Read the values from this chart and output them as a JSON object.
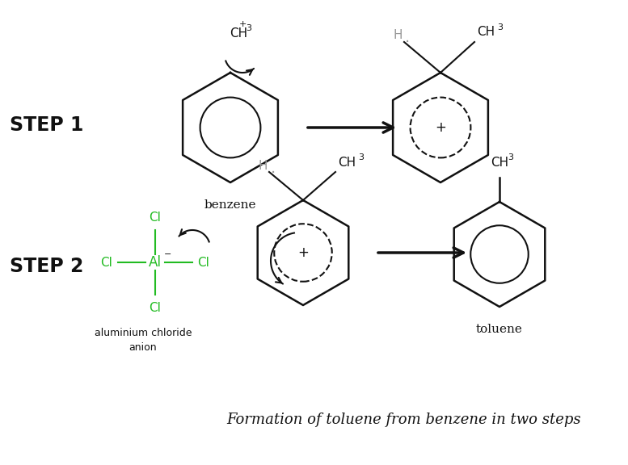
{
  "bg_color": "#ffffff",
  "title": "Formation of toluene from benzene in two steps",
  "title_fontsize": 13,
  "green_color": "#22bb22",
  "black_color": "#111111",
  "gray_color": "#999999",
  "step1_label": "STEP 1",
  "step2_label": "STEP 2",
  "benzene_label": "benzene",
  "toluene_label": "toluene",
  "alcl3_label1": "aluminium chloride",
  "alcl3_label2": "anion",
  "step_fontsize": 17,
  "label_fontsize": 11,
  "chem_fontsize": 11,
  "sub_fontsize": 8
}
